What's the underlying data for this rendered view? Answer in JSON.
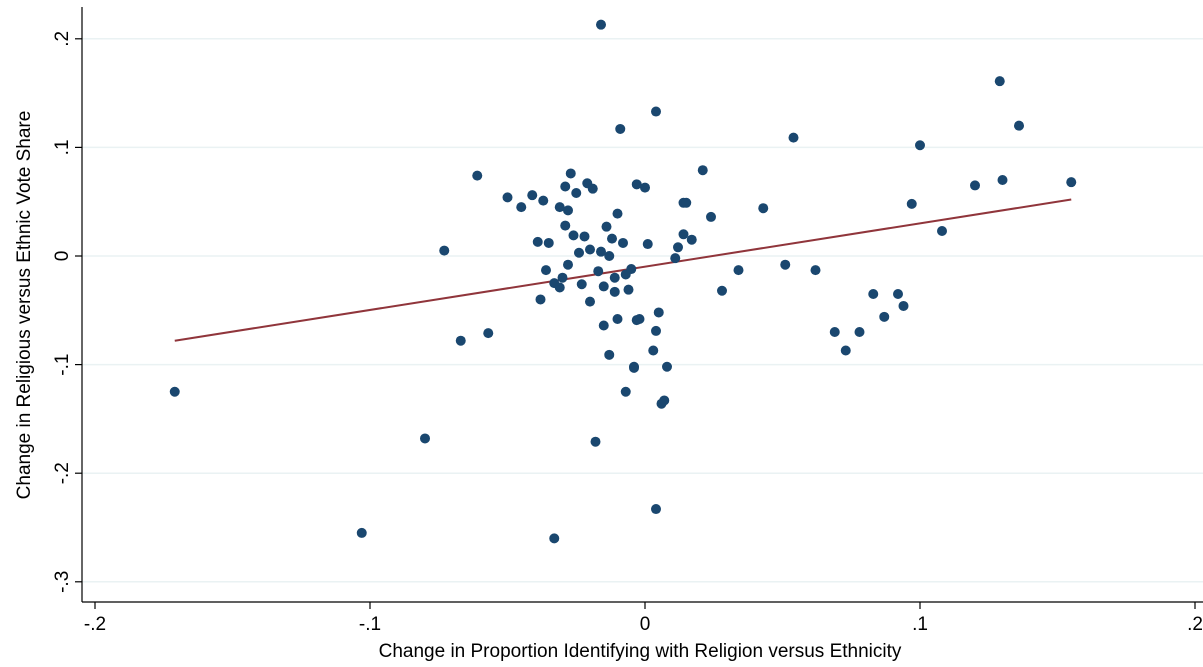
{
  "chart_data": {
    "type": "scatter",
    "title": "",
    "xlabel": "Change in Proportion Identifying with Religion versus Ethnicity",
    "ylabel": "Change in Religious versus Ethnic Vote Share",
    "xlim": [
      -0.2,
      0.2
    ],
    "ylim": [
      -0.3,
      0.2
    ],
    "x_ticks": [
      -0.2,
      -0.1,
      0,
      0.1,
      0.2
    ],
    "x_tick_labels": [
      "-.2",
      "-.1",
      "0",
      ".1",
      ".2"
    ],
    "y_ticks": [
      -0.3,
      -0.2,
      -0.1,
      0,
      0.1,
      0.2
    ],
    "y_tick_labels": [
      "-.3",
      "-.2",
      "-.1",
      "0",
      ".1",
      ".2"
    ],
    "grid": "horizontal",
    "colors": {
      "points": "#1a476f",
      "fit_line": "#90353b",
      "grid": "#eaf2f3"
    },
    "fit_line": {
      "x": [
        -0.171,
        0.155
      ],
      "y": [
        -0.078,
        0.052
      ]
    },
    "points": [
      {
        "x": -0.171,
        "y": -0.125
      },
      {
        "x": -0.103,
        "y": -0.255
      },
      {
        "x": -0.08,
        "y": -0.168
      },
      {
        "x": -0.073,
        "y": 0.005
      },
      {
        "x": -0.067,
        "y": -0.078
      },
      {
        "x": -0.061,
        "y": 0.074
      },
      {
        "x": -0.057,
        "y": -0.071
      },
      {
        "x": -0.05,
        "y": 0.054
      },
      {
        "x": -0.045,
        "y": 0.045
      },
      {
        "x": -0.041,
        "y": 0.056
      },
      {
        "x": -0.039,
        "y": 0.013
      },
      {
        "x": -0.038,
        "y": -0.04
      },
      {
        "x": -0.037,
        "y": 0.051
      },
      {
        "x": -0.036,
        "y": -0.013
      },
      {
        "x": -0.035,
        "y": 0.012
      },
      {
        "x": -0.033,
        "y": -0.025
      },
      {
        "x": -0.033,
        "y": -0.26
      },
      {
        "x": -0.031,
        "y": -0.029
      },
      {
        "x": -0.031,
        "y": 0.045
      },
      {
        "x": -0.03,
        "y": -0.02
      },
      {
        "x": -0.029,
        "y": 0.064
      },
      {
        "x": -0.029,
        "y": 0.028
      },
      {
        "x": -0.028,
        "y": -0.008
      },
      {
        "x": -0.028,
        "y": 0.042
      },
      {
        "x": -0.027,
        "y": 0.076
      },
      {
        "x": -0.026,
        "y": 0.019
      },
      {
        "x": -0.025,
        "y": 0.058
      },
      {
        "x": -0.024,
        "y": 0.003
      },
      {
        "x": -0.023,
        "y": -0.026
      },
      {
        "x": -0.022,
        "y": 0.018
      },
      {
        "x": -0.021,
        "y": 0.067
      },
      {
        "x": -0.02,
        "y": 0.006
      },
      {
        "x": -0.02,
        "y": -0.042
      },
      {
        "x": -0.019,
        "y": 0.062
      },
      {
        "x": -0.018,
        "y": -0.171
      },
      {
        "x": -0.017,
        "y": -0.014
      },
      {
        "x": -0.016,
        "y": 0.213
      },
      {
        "x": -0.016,
        "y": 0.004
      },
      {
        "x": -0.015,
        "y": -0.028
      },
      {
        "x": -0.015,
        "y": -0.064
      },
      {
        "x": -0.014,
        "y": 0.027
      },
      {
        "x": -0.013,
        "y": -0.091
      },
      {
        "x": -0.013,
        "y": 0.0
      },
      {
        "x": -0.012,
        "y": 0.016
      },
      {
        "x": -0.011,
        "y": -0.033
      },
      {
        "x": -0.011,
        "y": -0.02
      },
      {
        "x": -0.01,
        "y": 0.039
      },
      {
        "x": -0.01,
        "y": -0.058
      },
      {
        "x": -0.009,
        "y": 0.117
      },
      {
        "x": -0.008,
        "y": 0.012
      },
      {
        "x": -0.007,
        "y": -0.125
      },
      {
        "x": -0.007,
        "y": -0.017
      },
      {
        "x": -0.006,
        "y": -0.031
      },
      {
        "x": -0.005,
        "y": -0.012
      },
      {
        "x": -0.004,
        "y": -0.102
      },
      {
        "x": -0.004,
        "y": -0.103
      },
      {
        "x": -0.003,
        "y": -0.059
      },
      {
        "x": -0.003,
        "y": 0.066
      },
      {
        "x": -0.002,
        "y": -0.058
      },
      {
        "x": 0.0,
        "y": 0.063
      },
      {
        "x": 0.001,
        "y": 0.011
      },
      {
        "x": 0.003,
        "y": -0.087
      },
      {
        "x": 0.004,
        "y": 0.133
      },
      {
        "x": 0.004,
        "y": -0.069
      },
      {
        "x": 0.004,
        "y": -0.233
      },
      {
        "x": 0.005,
        "y": -0.052
      },
      {
        "x": 0.006,
        "y": -0.136
      },
      {
        "x": 0.007,
        "y": -0.133
      },
      {
        "x": 0.008,
        "y": -0.102
      },
      {
        "x": 0.011,
        "y": -0.002
      },
      {
        "x": 0.012,
        "y": 0.008
      },
      {
        "x": 0.014,
        "y": 0.049
      },
      {
        "x": 0.014,
        "y": 0.02
      },
      {
        "x": 0.015,
        "y": 0.049
      },
      {
        "x": 0.017,
        "y": 0.015
      },
      {
        "x": 0.021,
        "y": 0.079
      },
      {
        "x": 0.024,
        "y": 0.036
      },
      {
        "x": 0.028,
        "y": -0.032
      },
      {
        "x": 0.034,
        "y": -0.013
      },
      {
        "x": 0.043,
        "y": 0.044
      },
      {
        "x": 0.051,
        "y": -0.008
      },
      {
        "x": 0.054,
        "y": 0.109
      },
      {
        "x": 0.062,
        "y": -0.013
      },
      {
        "x": 0.069,
        "y": -0.07
      },
      {
        "x": 0.073,
        "y": -0.087
      },
      {
        "x": 0.078,
        "y": -0.07
      },
      {
        "x": 0.083,
        "y": -0.035
      },
      {
        "x": 0.087,
        "y": -0.056
      },
      {
        "x": 0.092,
        "y": -0.035
      },
      {
        "x": 0.094,
        "y": -0.046
      },
      {
        "x": 0.097,
        "y": 0.048
      },
      {
        "x": 0.1,
        "y": 0.102
      },
      {
        "x": 0.108,
        "y": 0.023
      },
      {
        "x": 0.12,
        "y": 0.065
      },
      {
        "x": 0.129,
        "y": 0.161
      },
      {
        "x": 0.13,
        "y": 0.07
      },
      {
        "x": 0.136,
        "y": 0.12
      },
      {
        "x": 0.155,
        "y": 0.068
      }
    ]
  }
}
